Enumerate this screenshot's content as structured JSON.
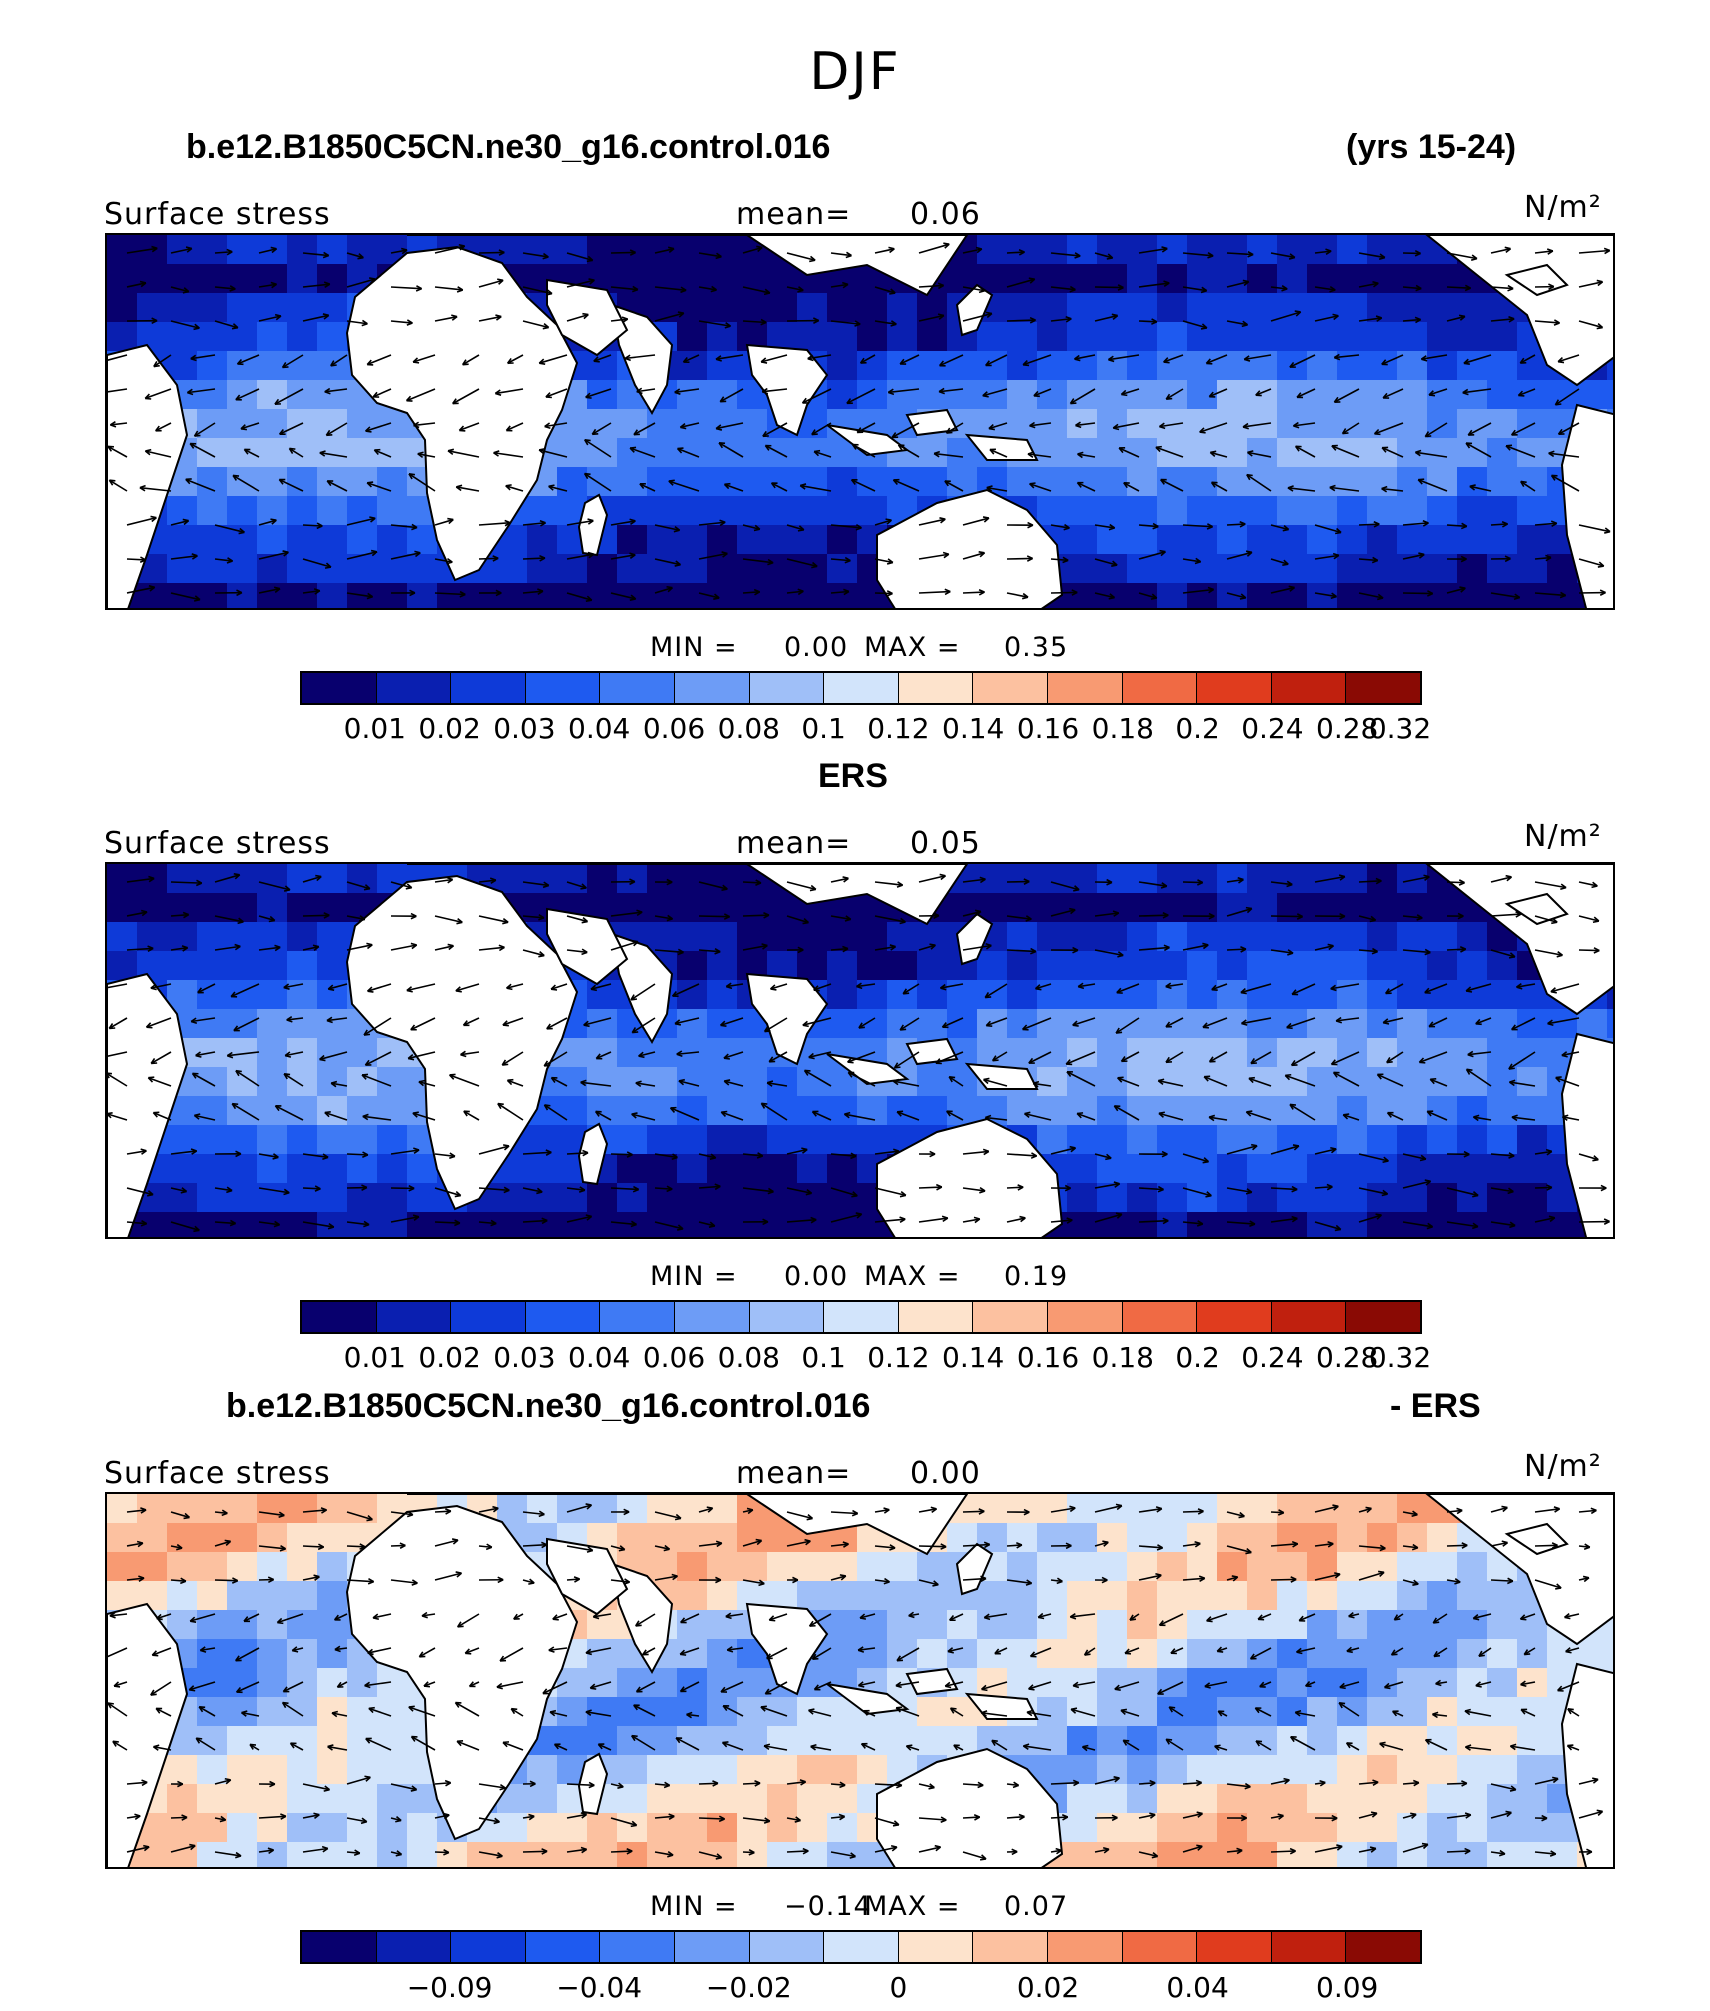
{
  "title": "DJF",
  "panels": [
    {
      "case_label": "b.e12.B1850C5CN.ne30_g16.control.016",
      "case_suffix": "(yrs 15-24)",
      "field": "Surface stress",
      "mean_label": "mean=",
      "mean_value": "0.06",
      "units": "N/m²",
      "min_label": "MIN =",
      "min_value": "0.00",
      "max_label": "MAX =",
      "max_value": "0.35",
      "scale": "absolute",
      "tick_labels": [
        "0.01",
        "0.02",
        "0.03",
        "0.04",
        "0.06",
        "0.08",
        "0.1",
        "0.12",
        "0.14",
        "0.16",
        "0.18",
        "0.2",
        "0.24",
        "0.28",
        "0.32"
      ]
    },
    {
      "case_label": "ERS",
      "case_suffix": "",
      "field": "Surface stress",
      "mean_label": "mean=",
      "mean_value": "0.05",
      "units": "N/m²",
      "min_label": "MIN =",
      "min_value": "0.00",
      "max_label": "MAX =",
      "max_value": "0.19",
      "scale": "absolute",
      "tick_labels": [
        "0.01",
        "0.02",
        "0.03",
        "0.04",
        "0.06",
        "0.08",
        "0.1",
        "0.12",
        "0.14",
        "0.16",
        "0.18",
        "0.2",
        "0.24",
        "0.28",
        "0.32"
      ]
    },
    {
      "case_label": "b.e12.B1850C5CN.ne30_g16.control.016",
      "case_suffix": "- ERS",
      "field": "Surface stress",
      "mean_label": "mean=",
      "mean_value": "0.00",
      "units": "N/m²",
      "min_label": "MIN =",
      "min_value": "−0.14",
      "max_label": "MAX =",
      "max_value": "0.07",
      "scale": "difference",
      "tick_labels": [
        "−0.09",
        "−0.04",
        "−0.02",
        "0",
        "0.02",
        "0.04",
        "0.09"
      ]
    }
  ],
  "colorbar_colors": [
    "#08006e",
    "#0a1fb0",
    "#0e3ad8",
    "#1e5af0",
    "#3f7af4",
    "#6d9cf6",
    "#9fbff8",
    "#d2e4fb",
    "#fde3cc",
    "#fcc1a0",
    "#f89a72",
    "#f06a44",
    "#e03c1e",
    "#c0200e",
    "#8a0a04"
  ]
}
